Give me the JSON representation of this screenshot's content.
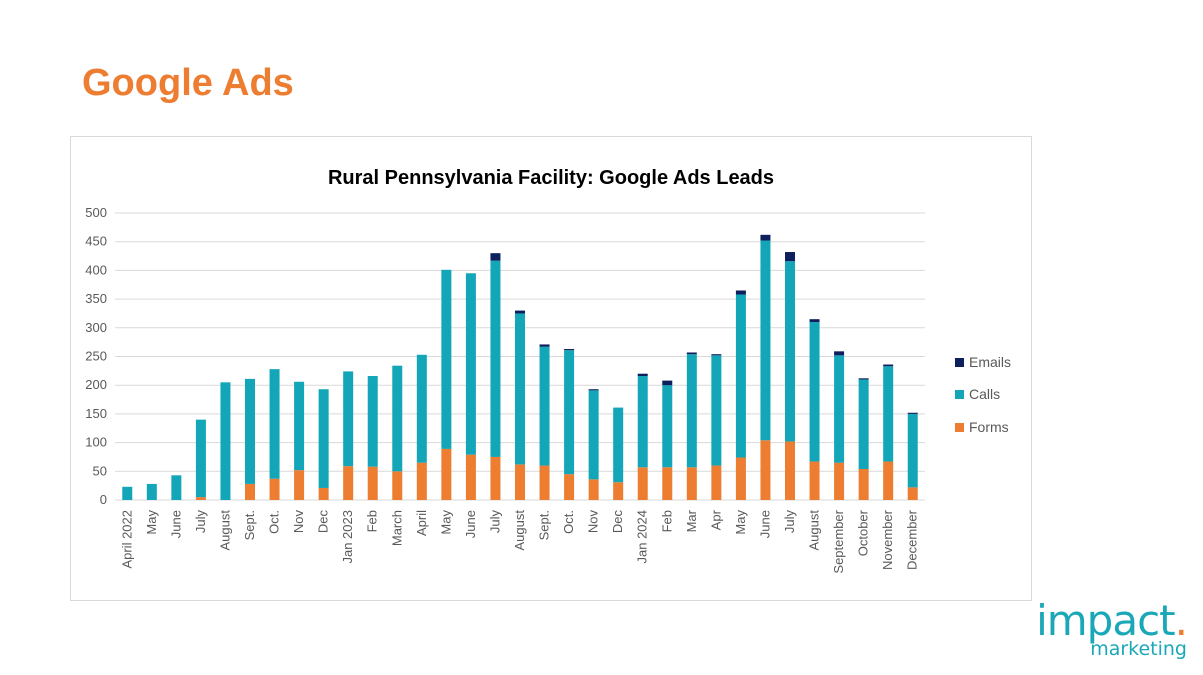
{
  "slide": {
    "title": "Google Ads"
  },
  "logo": {
    "main": "impact",
    "dot": ".",
    "sub": "marketing"
  },
  "colors": {
    "title": "#ED7D31",
    "forms": "#ED7D31",
    "calls": "#13A6B8",
    "emails": "#0D1F5C",
    "grid": "#d9d9d9"
  },
  "chart_data": {
    "type": "bar",
    "stacked": true,
    "title": "Rural Pennsylvania Facility: Google Ads Leads",
    "xlabel": "",
    "ylabel": "",
    "ylim": [
      0,
      500
    ],
    "yticks": [
      0,
      50,
      100,
      150,
      200,
      250,
      300,
      350,
      400,
      450,
      500
    ],
    "grid": true,
    "legend_position": "right",
    "legend_order": [
      "Emails",
      "Calls",
      "Forms"
    ],
    "categories": [
      "April 2022",
      "May",
      "June",
      "July",
      "August",
      "Sept.",
      "Oct.",
      "Nov",
      "Dec",
      "Jan 2023",
      "Feb",
      "March",
      "April",
      "May",
      "June",
      "July",
      "August",
      "Sept.",
      "Oct.",
      "Nov",
      "Dec",
      "Jan 2024",
      "Feb",
      "Mar",
      "Apr",
      "May",
      "June",
      "July",
      "August",
      "September",
      "October",
      "November",
      "December"
    ],
    "series": [
      {
        "name": "Forms",
        "color": "#ED7D31",
        "values": [
          0,
          0,
          0,
          5,
          0,
          28,
          37,
          52,
          21,
          59,
          58,
          50,
          65,
          89,
          79,
          75,
          62,
          60,
          45,
          36,
          31,
          57,
          57,
          57,
          60,
          74,
          104,
          102,
          67,
          65,
          54,
          67,
          22
        ]
      },
      {
        "name": "Calls",
        "color": "#13A6B8",
        "values": [
          23,
          28,
          43,
          135,
          205,
          183,
          191,
          154,
          172,
          165,
          158,
          184,
          188,
          312,
          316,
          342,
          263,
          207,
          216,
          155,
          130,
          159,
          143,
          197,
          192,
          284,
          348,
          314,
          243,
          187,
          156,
          166,
          128
        ]
      },
      {
        "name": "Emails",
        "color": "#0D1F5C",
        "values": [
          0,
          0,
          0,
          0,
          0,
          0,
          0,
          0,
          0,
          0,
          0,
          0,
          0,
          0,
          0,
          13,
          5,
          4,
          2,
          2,
          0,
          4,
          8,
          3,
          2,
          7,
          10,
          16,
          5,
          7,
          2,
          3,
          2
        ]
      }
    ]
  }
}
